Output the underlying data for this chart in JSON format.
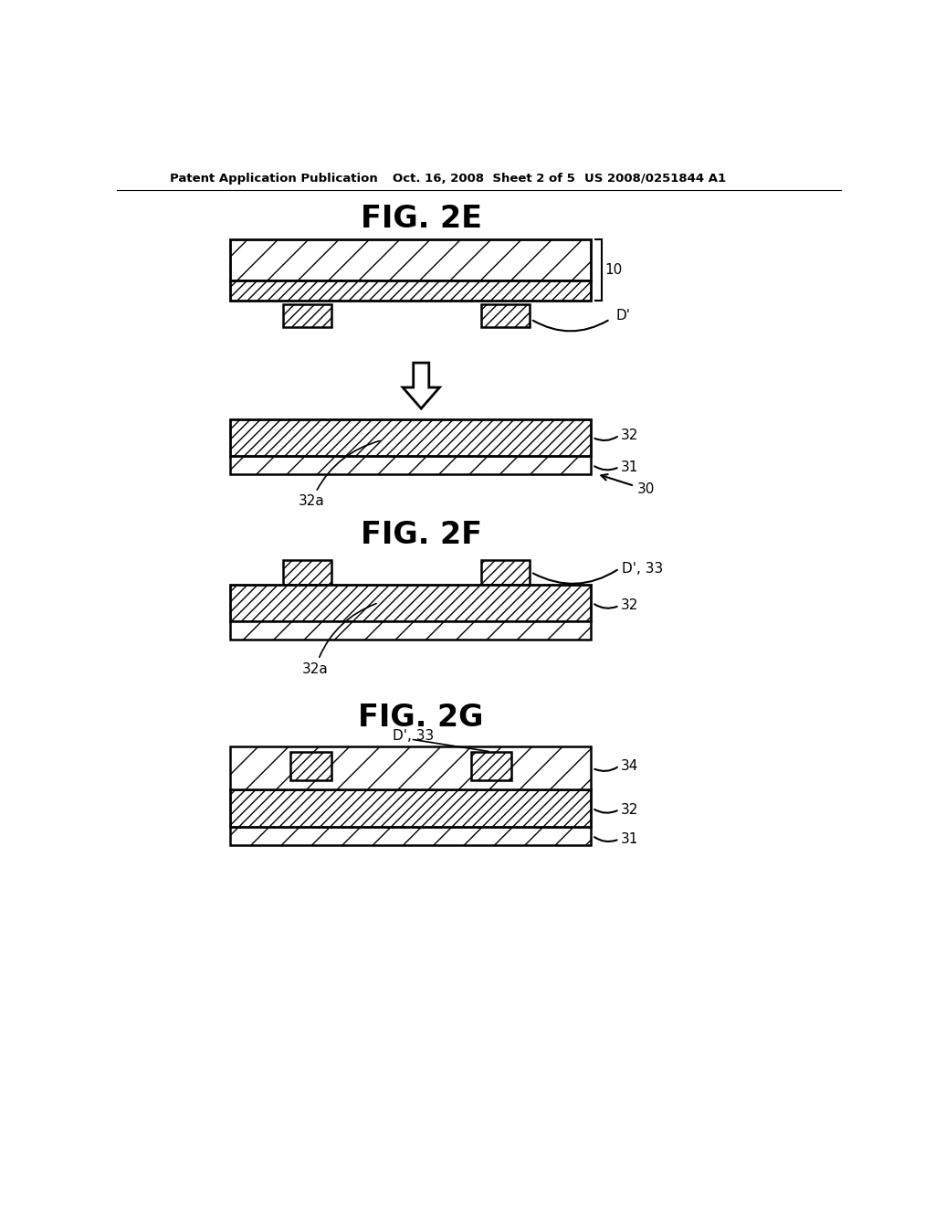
{
  "bg_color": "#ffffff",
  "header_left": "Patent Application Publication",
  "header_mid": "Oct. 16, 2008  Sheet 2 of 5",
  "header_right": "US 2008/0251844 A1",
  "fig2e_title": "FIG. 2E",
  "fig2f_title": "FIG. 2F",
  "fig2g_title": "FIG. 2G"
}
